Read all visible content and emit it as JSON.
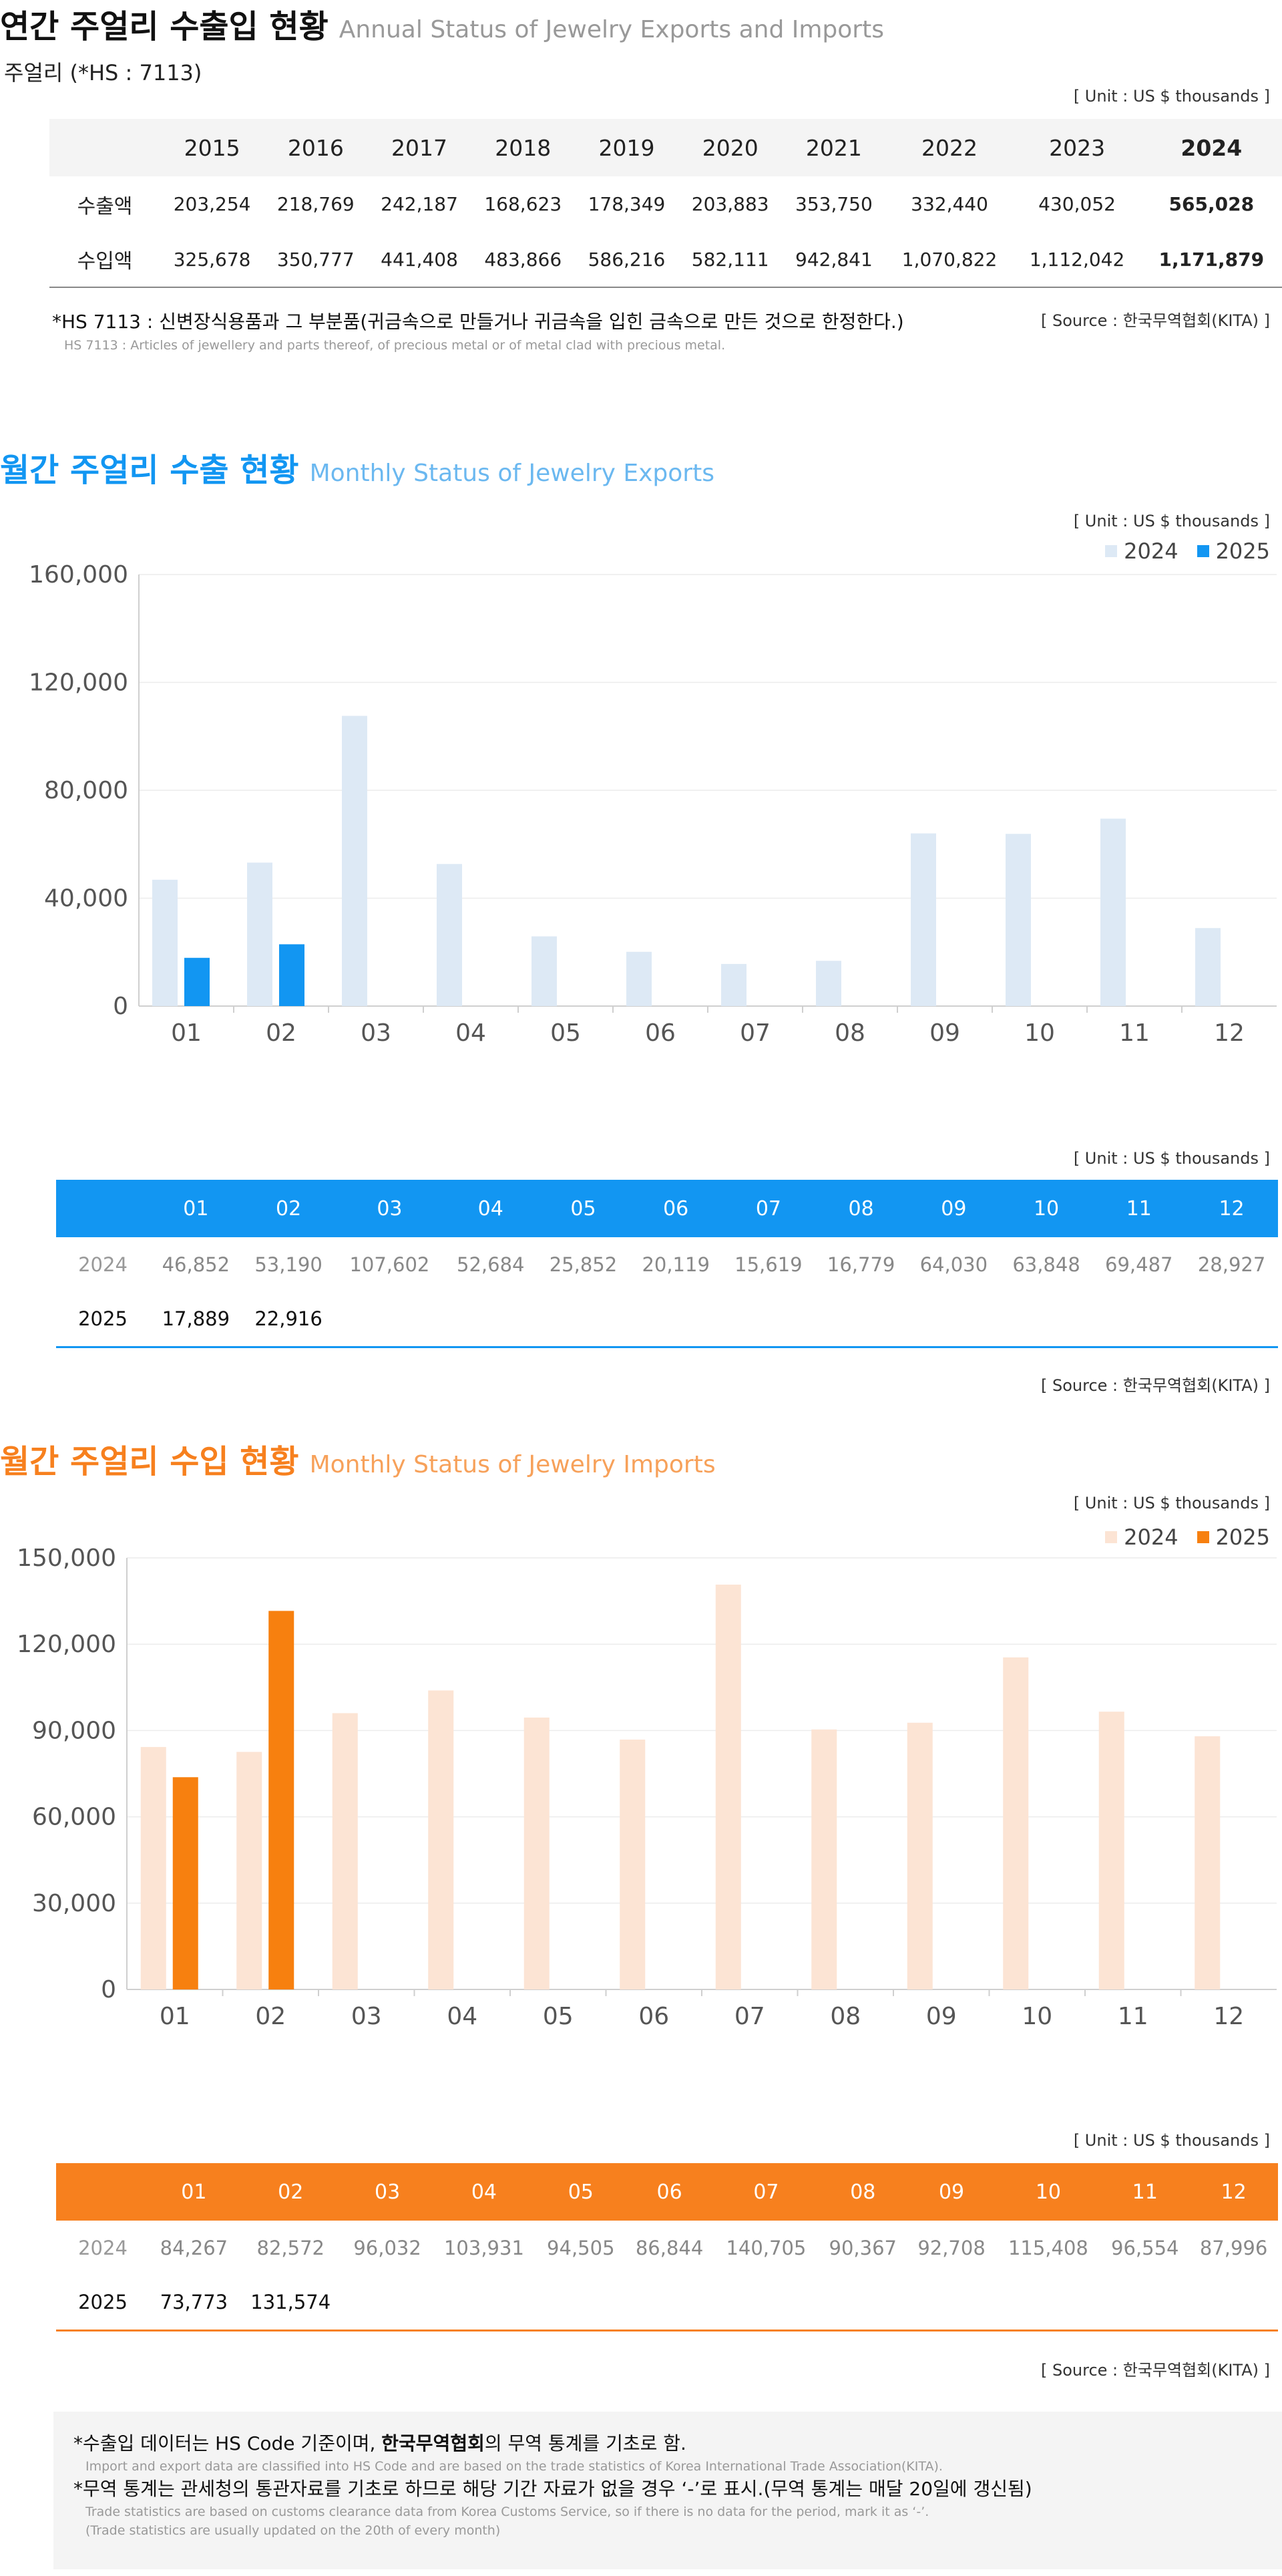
{
  "annual": {
    "title": "연간 주얼리 수출입 현황",
    "title_en": "Annual Status of Jewelry Exports and Imports",
    "subtitle": "주얼리 (*HS : 7113)",
    "unit": "[ Unit : US $ thousands ]",
    "years": [
      "2015",
      "2016",
      "2017",
      "2018",
      "2019",
      "2020",
      "2021",
      "2022",
      "2023",
      "2024"
    ],
    "rows": [
      {
        "label": "수출액",
        "values": [
          "203,254",
          "218,769",
          "242,187",
          "168,623",
          "178,349",
          "203,883",
          "353,750",
          "332,440",
          "430,052",
          "565,028"
        ]
      },
      {
        "label": "수입액",
        "values": [
          "325,678",
          "350,777",
          "441,408",
          "483,866",
          "586,216",
          "582,111",
          "942,841",
          "1,070,822",
          "1,112,042",
          "1,171,879"
        ]
      }
    ],
    "footnote": "*HS 7113 : 신변장식용품과 그 부분품(귀금속으로 만들거나 귀금속을 입힌 금속으로 만든 것으로 한정한다.)",
    "footnote_en": "HS 7113 : Articles of jewellery and parts thereof, of precious metal or of metal clad with precious metal.",
    "source": "[ Source : 한국무역협회(KITA) ]"
  },
  "exports": {
    "title": "월간 주얼리 수출 현황",
    "title_en": "Monthly Status of Jewelry Exports",
    "unit": "[ Unit : US $ thousands ]",
    "table_unit": "[ Unit : US $ thousands ]",
    "source": "[ Source : 한국무역협회(KITA) ]",
    "colors": {
      "s2024": "#dde9f5",
      "s2025": "#1296f2"
    },
    "table": {
      "months": [
        "01",
        "02",
        "03",
        "04",
        "05",
        "06",
        "07",
        "08",
        "09",
        "10",
        "11",
        "12"
      ],
      "rows": [
        {
          "year": "2024",
          "values": [
            "46,852",
            "53,190",
            "107,602",
            "52,684",
            "25,852",
            "20,119",
            "15,619",
            "16,779",
            "64,030",
            "63,848",
            "69,487",
            "28,927"
          ]
        },
        {
          "year": "2025",
          "values": [
            "17,889",
            "22,916",
            "",
            "",
            "",
            "",
            "",
            "",
            "",
            "",
            "",
            ""
          ]
        }
      ]
    }
  },
  "imports": {
    "title": "월간 주얼리 수입 현황",
    "title_en": "Monthly Status of Jewelry Imports",
    "unit": "[ Unit : US $ thousands ]",
    "table_unit": "[ Unit : US $ thousands ]",
    "source": "[ Source : 한국무역협회(KITA) ]",
    "colors": {
      "s2024": "#fce4d4",
      "s2025": "#f7800f"
    },
    "table": {
      "months": [
        "01",
        "02",
        "03",
        "04",
        "05",
        "06",
        "07",
        "08",
        "09",
        "10",
        "11",
        "12"
      ],
      "rows": [
        {
          "year": "2024",
          "values": [
            "84,267",
            "82,572",
            "96,032",
            "103,931",
            "94,505",
            "86,844",
            "140,705",
            "90,367",
            "92,708",
            "115,408",
            "96,554",
            "87,996"
          ]
        },
        {
          "year": "2025",
          "values": [
            "73,773",
            "131,574",
            "",
            "",
            "",
            "",
            "",
            "",
            "",
            "",
            "",
            ""
          ]
        }
      ]
    }
  },
  "chart_data": [
    {
      "type": "bar",
      "categories": [
        "01",
        "02",
        "03",
        "04",
        "05",
        "06",
        "07",
        "08",
        "09",
        "10",
        "11",
        "12"
      ],
      "series": [
        {
          "name": "2024",
          "values": [
            46852,
            53190,
            107602,
            52684,
            25852,
            20119,
            15619,
            16779,
            64030,
            63848,
            69487,
            28927
          ]
        },
        {
          "name": "2025",
          "values": [
            17889,
            22916,
            null,
            null,
            null,
            null,
            null,
            null,
            null,
            null,
            null,
            null
          ]
        }
      ],
      "yticks": [
        "0",
        "40,000",
        "80,000",
        "120,000",
        "160,000"
      ],
      "ylim": [
        0,
        160000
      ],
      "grid": true,
      "legend": "top-right"
    },
    {
      "type": "bar",
      "categories": [
        "01",
        "02",
        "03",
        "04",
        "05",
        "06",
        "07",
        "08",
        "09",
        "10",
        "11",
        "12"
      ],
      "series": [
        {
          "name": "2024",
          "values": [
            84267,
            82572,
            96032,
            103931,
            94505,
            86844,
            140705,
            90367,
            92708,
            115408,
            96554,
            87996
          ]
        },
        {
          "name": "2025",
          "values": [
            73773,
            131574,
            null,
            null,
            null,
            null,
            null,
            null,
            null,
            null,
            null,
            null
          ]
        }
      ],
      "yticks": [
        "0",
        "30,000",
        "60,000",
        "90,000",
        "120,000",
        "150,000"
      ],
      "ylim": [
        0,
        150000
      ],
      "grid": true,
      "legend": "top-right"
    }
  ],
  "notes": [
    {
      "pre": "*수출입 데이터는 HS Code 기준이며, ",
      "bold": "한국무역협회",
      "post": "의 무역 통계를 기초로 함.",
      "en": [
        "Import and export data are classified into HS Code and are based on the trade statistics of Korea International  Trade Association(KITA)."
      ]
    },
    {
      "pre": "*무역 통계는 관세청의  통관자료를 기초로 하므로 해당 기간 자료가 없을 경우 ‘-’로 표시.(무역 통계는 매달 20일에 갱신됨)",
      "bold": "",
      "post": "",
      "en": [
        "Trade statistics are based on customs clearance data from Korea Customs Service, so if there is no data for the period, mark it as ‘-’.",
        "(Trade statistics are usually updated on the 20th of every month)"
      ]
    }
  ]
}
